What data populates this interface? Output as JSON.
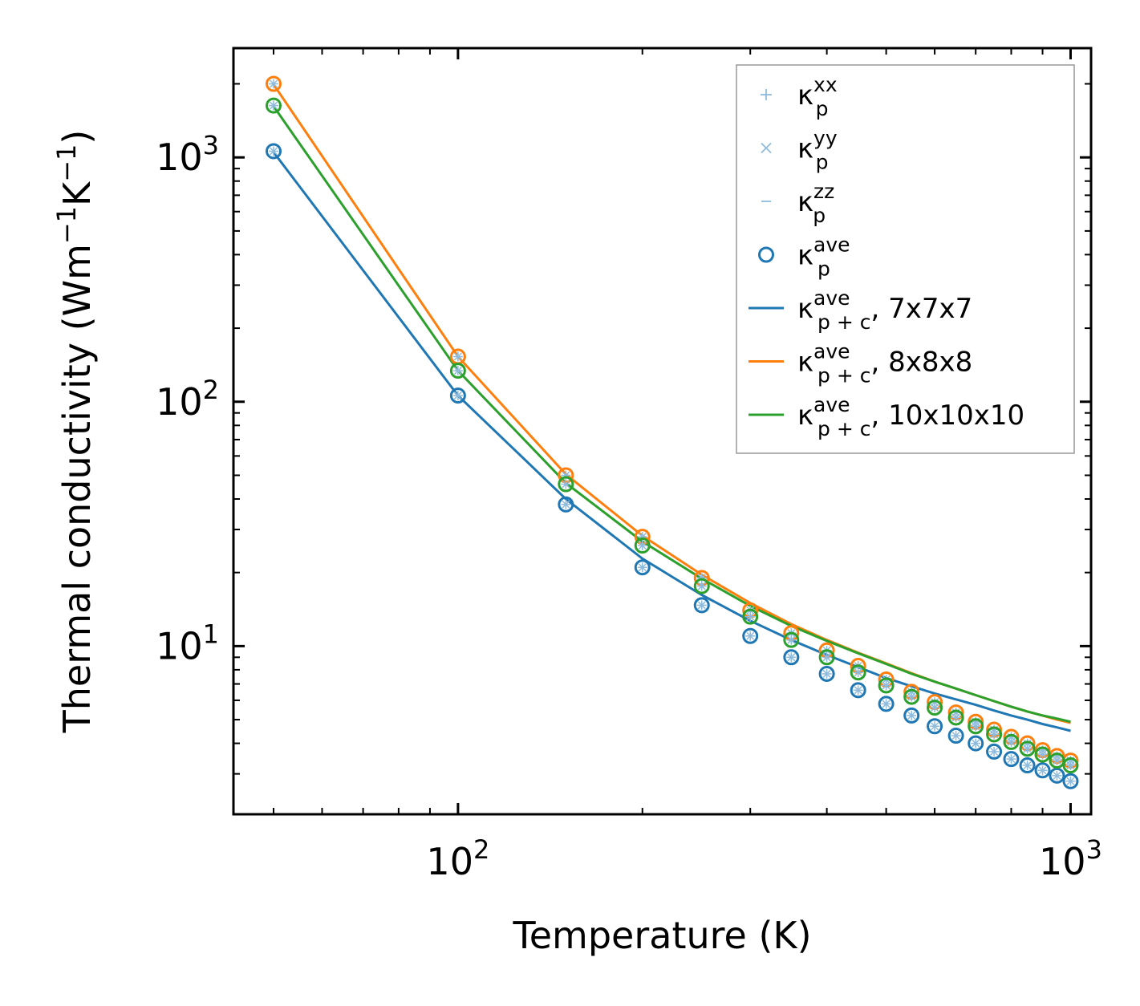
{
  "chart_data": {
    "type": "scatter",
    "title": "",
    "xlabel": "Temperature (K)",
    "ylabel": {
      "base": "Thermal conductivity (Wm",
      "exp1": "−1",
      "mid": "K",
      "exp2": "−1",
      "end": ")"
    },
    "xscale": "log",
    "yscale": "log",
    "xlim": [
      43,
      1080
    ],
    "ylim": [
      2.05,
      2800
    ],
    "x_ticks": [
      {
        "value": 100,
        "base": "10",
        "exp": "2"
      },
      {
        "value": 1000,
        "base": "10",
        "exp": "3"
      }
    ],
    "y_ticks": [
      {
        "value": 10,
        "base": "10",
        "exp": "1"
      },
      {
        "value": 100,
        "base": "10",
        "exp": "2"
      },
      {
        "value": 1000,
        "base": "10",
        "exp": "3"
      }
    ],
    "temperatures": [
      50,
      100,
      150,
      200,
      250,
      300,
      350,
      400,
      450,
      500,
      550,
      600,
      650,
      700,
      750,
      800,
      850,
      900,
      950,
      1000
    ],
    "series": [
      {
        "name": "7x7x7",
        "color": "#1f77b4",
        "points": [
          1060,
          106,
          38,
          21,
          14.7,
          11,
          9.0,
          7.7,
          6.6,
          5.8,
          5.2,
          4.7,
          4.3,
          4.0,
          3.7,
          3.45,
          3.25,
          3.1,
          2.95,
          2.8
        ],
        "line": [
          1050,
          106,
          40,
          22.8,
          16.2,
          12.7,
          10.6,
          9.2,
          8.2,
          7.4,
          6.85,
          6.4,
          6.05,
          5.75,
          5.45,
          5.2,
          5.0,
          4.8,
          4.65,
          4.5
        ]
      },
      {
        "name": "8x8x8",
        "color": "#ff7f0e",
        "points": [
          2000,
          153,
          50,
          28,
          19,
          14,
          11.3,
          9.6,
          8.3,
          7.3,
          6.5,
          5.9,
          5.35,
          4.9,
          4.55,
          4.25,
          4.0,
          3.75,
          3.55,
          3.4
        ],
        "line": [
          1990,
          153,
          50.5,
          28.3,
          19.6,
          15.0,
          12.3,
          10.6,
          9.4,
          8.5,
          7.75,
          7.15,
          6.7,
          6.3,
          5.95,
          5.65,
          5.4,
          5.2,
          5.0,
          4.85
        ]
      },
      {
        "name": "10x10x10",
        "color": "#2ca02c",
        "points": [
          1630,
          134,
          46,
          25.8,
          17.6,
          13.2,
          10.6,
          9.0,
          7.8,
          6.9,
          6.2,
          5.6,
          5.1,
          4.7,
          4.35,
          4.05,
          3.8,
          3.6,
          3.4,
          3.25
        ],
        "line": [
          1620,
          134,
          46.5,
          26.8,
          18.9,
          14.6,
          12.1,
          10.5,
          9.35,
          8.45,
          7.7,
          7.15,
          6.7,
          6.3,
          5.95,
          5.65,
          5.4,
          5.2,
          5.05,
          4.9
        ]
      }
    ],
    "legend": {
      "position": "top-right",
      "entries": [
        {
          "kind": "plus",
          "color": "#8fbbdc",
          "base": "κ",
          "sub": "p",
          "sup": "xx",
          "suffix": ""
        },
        {
          "kind": "cross",
          "color": "#8fbbdc",
          "base": "κ",
          "sub": "p",
          "sup": "yy",
          "suffix": ""
        },
        {
          "kind": "dash",
          "color": "#8fbbdc",
          "base": "κ",
          "sub": "p",
          "sup": "zz",
          "suffix": ""
        },
        {
          "kind": "circle",
          "color": "#1f77b4",
          "base": "κ",
          "sub": "p",
          "sup": "ave",
          "suffix": ""
        },
        {
          "kind": "line",
          "color": "#1f77b4",
          "base": "κ",
          "sub": "p + c",
          "sup": "ave",
          "suffix": ", 7x7x7"
        },
        {
          "kind": "line",
          "color": "#ff7f0e",
          "base": "κ",
          "sub": "p + c",
          "sup": "ave",
          "suffix": ", 8x8x8"
        },
        {
          "kind": "line",
          "color": "#2ca02c",
          "base": "κ",
          "sub": "p + c",
          "sup": "ave",
          "suffix": ", 10x10x10"
        }
      ]
    }
  }
}
